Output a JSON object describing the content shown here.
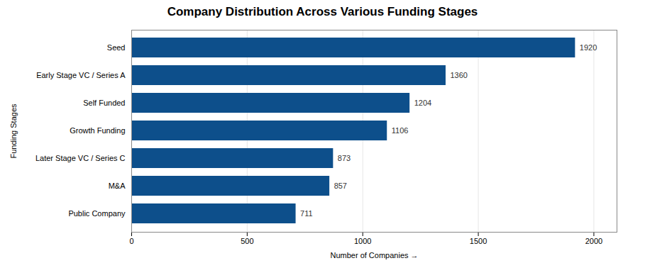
{
  "chart_data": {
    "type": "bar",
    "orientation": "horizontal",
    "title": "Company Distribution Across Various Funding Stages",
    "categories": [
      "Public Company",
      "M&A",
      "Later Stage VC / Series C",
      "Growth Funding",
      "Self Funded",
      "Early Stage VC / Series A",
      "Seed"
    ],
    "values": [
      711,
      857,
      873,
      1106,
      1204,
      1360,
      1920
    ],
    "color": "#0d4f8b",
    "xlabel": "Number of Companies",
    "ylabel": "Funding Stages",
    "xlim": [
      0,
      2100
    ],
    "xticks": [
      0,
      500,
      1000,
      1500,
      2000
    ],
    "grid": true,
    "data_labels": true
  }
}
